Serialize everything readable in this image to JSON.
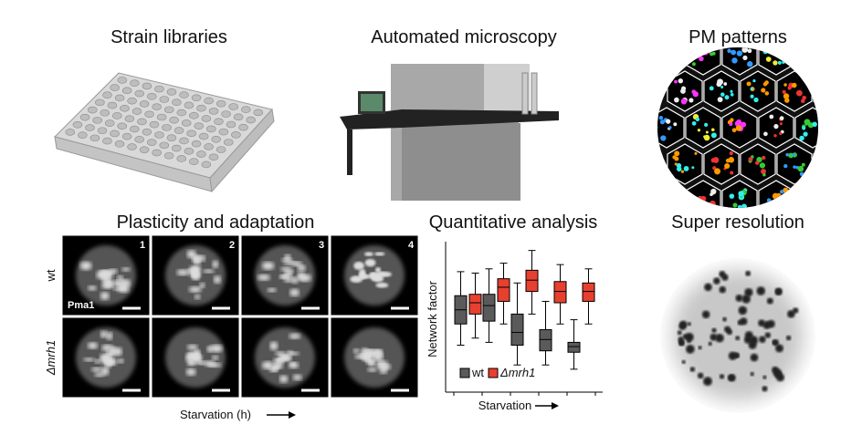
{
  "strain_libraries": {
    "title": "Strain libraries"
  },
  "automated_microscopy": {
    "title": "Automated microscopy"
  },
  "pm_patterns": {
    "title": "PM patterns"
  },
  "plasticity": {
    "title": "Plasticity and adaptation",
    "panels": [
      "1",
      "2",
      "3",
      "4"
    ],
    "rows": [
      "wt",
      "Δmrh1"
    ],
    "marker": "Pma1",
    "x_label": "Starvation (h)"
  },
  "quantitative": {
    "title": "Quantitative analysis",
    "chart_data": {
      "type": "box",
      "y_label": "Network factor",
      "x_label": "Starvation",
      "ylim": [
        0,
        10
      ],
      "series": [
        {
          "name": "wt",
          "color": "#5a5a5a",
          "values": [
            {
              "low": 3.0,
              "q1": 4.5,
              "median": 5.5,
              "q3": 6.5,
              "high": 8.2
            },
            {
              "low": 3.2,
              "q1": 4.7,
              "median": 5.8,
              "q3": 6.6,
              "high": 8.4
            },
            {
              "low": 1.6,
              "q1": 3.0,
              "median": 3.9,
              "q3": 5.2,
              "high": 7.4
            },
            {
              "low": 1.6,
              "q1": 2.6,
              "median": 3.4,
              "q3": 4.1,
              "high": 6.1
            },
            {
              "low": 1.3,
              "q1": 2.5,
              "median": 2.9,
              "q3": 3.2,
              "high": 4.8
            }
          ]
        },
        {
          "name": "Δmrh1",
          "color": "#e8402f",
          "values": [
            {
              "low": 3.5,
              "q1": 5.2,
              "median": 6.0,
              "q3": 6.6,
              "high": 8.1
            },
            {
              "low": 4.5,
              "q1": 6.1,
              "median": 7.1,
              "q3": 7.7,
              "high": 8.8
            },
            {
              "low": 5.2,
              "q1": 6.8,
              "median": 7.6,
              "q3": 8.3,
              "high": 9.7
            },
            {
              "low": 4.5,
              "q1": 6.0,
              "median": 6.8,
              "q3": 7.5,
              "high": 8.7
            },
            {
              "low": 4.5,
              "q1": 6.1,
              "median": 6.8,
              "q3": 7.4,
              "high": 8.4
            }
          ]
        }
      ]
    }
  },
  "super_resolution": {
    "title": "Super resolution"
  }
}
